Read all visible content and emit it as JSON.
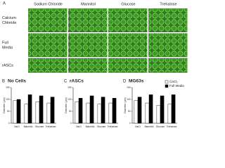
{
  "panel_a": {
    "label": "A",
    "columns": [
      "Sodium Chloride",
      "Mannitol",
      "Glucose",
      "Trehalose"
    ],
    "rows": [
      [
        "Calcium",
        "Chloride"
      ],
      [
        "Full",
        "Media"
      ],
      [
        "rASCs"
      ]
    ]
  },
  "chart_data": [
    {
      "type": "bar",
      "label": "B",
      "title": "No Cells",
      "y_label": "Diameter (μm)",
      "categories": [
        "NaCl",
        "Mannitol",
        "Glucose",
        "Trehalose"
      ],
      "series": [
        {
          "color": "#ffffff",
          "values": [
            95,
            80,
            90,
            85
          ]
        },
        {
          "color": "#000000",
          "values": [
            100,
            120,
            115,
            110
          ]
        }
      ],
      "ylim": [
        0,
        150
      ],
      "yticks": [
        0,
        50,
        100,
        150
      ]
    },
    {
      "type": "bar",
      "label": "C",
      "title": "rASCs",
      "y_label": "Diameter (μm)",
      "categories": [
        "NaCl",
        "Mannitol",
        "Glucose",
        "Trehalose"
      ],
      "series": [
        {
          "color": "#ffffff",
          "values": [
            90,
            85,
            80,
            85
          ]
        },
        {
          "color": "#000000",
          "values": [
            105,
            115,
            110,
            105
          ]
        }
      ],
      "ylim": [
        0,
        150
      ],
      "yticks": [
        0,
        50,
        100,
        150
      ]
    },
    {
      "type": "bar",
      "label": "D",
      "title": "MG63s",
      "y_label": "Diameter (μm)",
      "categories": [
        "NaCl",
        "Mannitol",
        "Glucose",
        "Trehalose"
      ],
      "series": [
        {
          "name": "CaCl₂",
          "color": "#ffffff",
          "values": [
            95,
            85,
            75,
            80
          ]
        },
        {
          "name": "Full Media",
          "color": "#000000",
          "values": [
            110,
            120,
            115,
            120
          ]
        }
      ],
      "ylim": [
        0,
        150
      ],
      "yticks": [
        0,
        50,
        100,
        150
      ]
    }
  ]
}
